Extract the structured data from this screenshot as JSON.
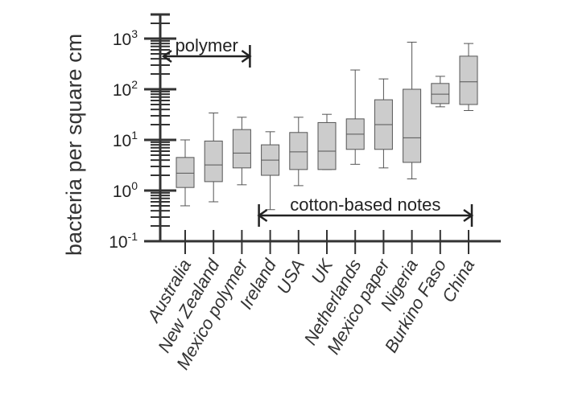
{
  "chart_data": {
    "type": "box",
    "ylabel": "bacteria per square cm",
    "yscale": "log",
    "ylim_exp": [
      -1,
      3
    ],
    "y_ticks": [
      {
        "base": "10",
        "exp": "3"
      },
      {
        "base": "10",
        "exp": "2"
      },
      {
        "base": "10",
        "exp": "1"
      },
      {
        "base": "10",
        "exp": "0"
      },
      {
        "base": "10",
        "exp": "-1"
      }
    ],
    "categories": [
      "Australia",
      "New Zealand",
      "Mexico polymer",
      "Ireland",
      "USA",
      "UK",
      "Netherlands",
      "Mexico paper",
      "Nigeria",
      "Burkino Faso",
      "China"
    ],
    "boxes": [
      {
        "min": 0.5,
        "q1": 1.15,
        "median": 2.2,
        "q3": 4.5,
        "max": 10
      },
      {
        "min": 0.6,
        "q1": 1.5,
        "median": 3.2,
        "q3": 9.5,
        "max": 34
      },
      {
        "min": 1.3,
        "q1": 2.8,
        "median": 5.5,
        "q3": 16,
        "max": 28
      },
      {
        "min": 0.42,
        "q1": 2.0,
        "median": 4.0,
        "q3": 8.0,
        "max": 14.5
      },
      {
        "min": 1.25,
        "q1": 2.6,
        "median": 5.8,
        "q3": 14,
        "max": 28
      },
      {
        "min": 2.6,
        "q1": 2.6,
        "median": 6.0,
        "q3": 22,
        "max": 32
      },
      {
        "min": 3.3,
        "q1": 6.5,
        "median": 13,
        "q3": 26,
        "max": 240
      },
      {
        "min": 2.8,
        "q1": 6.5,
        "median": 20,
        "q3": 62,
        "max": 160
      },
      {
        "min": 1.7,
        "q1": 3.6,
        "median": 11,
        "q3": 100,
        "max": 850
      },
      {
        "min": 45,
        "q1": 52,
        "median": 80,
        "q3": 130,
        "max": 180
      },
      {
        "min": 38,
        "q1": 50,
        "median": 140,
        "q3": 450,
        "max": 800
      }
    ],
    "annotations": [
      {
        "text": "polymer",
        "from": "Australia",
        "to": "Mexico polymer"
      },
      {
        "text": "cotton-based notes",
        "from": "Ireland",
        "to": "China"
      }
    ],
    "grid": false,
    "legend": "none"
  }
}
